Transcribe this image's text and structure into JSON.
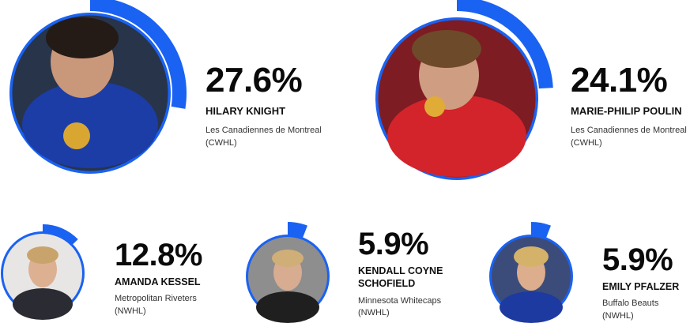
{
  "accent_color": "#1a62f2",
  "chart_data": {
    "type": "radial-progress",
    "title": "",
    "unit": "%",
    "series": [
      {
        "name": "HILARY KNIGHT",
        "team": "Les Canadiennes de Montreal",
        "league": "(CWHL)",
        "label": "27.6%",
        "value": 27.6,
        "photo": "player photo: U.S. jersey, gold medal"
      },
      {
        "name": "MARIE-PHILIP POULIN",
        "team": "Les Canadiennes de Montreal",
        "league": "(CWHL)",
        "label": "24.1%",
        "value": 24.1,
        "photo": "player photo: red jersey, biting gold medal"
      },
      {
        "name": "AMANDA KESSEL",
        "team": "Metropolitan Riveters",
        "league": "(NWHL)",
        "label": "12.8%",
        "value": 12.8,
        "photo": "player headshot"
      },
      {
        "name_lines": [
          "KENDALL COYNE",
          "SCHOFIELD"
        ],
        "name": "KENDALL COYNE SCHOFIELD",
        "team": "Minnesota Whitecaps",
        "league": "(NWHL)",
        "label": "5.9%",
        "value": 5.9,
        "photo": "player headshot"
      },
      {
        "name": "EMILY PFALZER",
        "team": "Buffalo Beauts (NWHL)",
        "label": "5.9%",
        "value": 5.9,
        "photo": "player photo: U.S. jersey, medal"
      }
    ]
  }
}
